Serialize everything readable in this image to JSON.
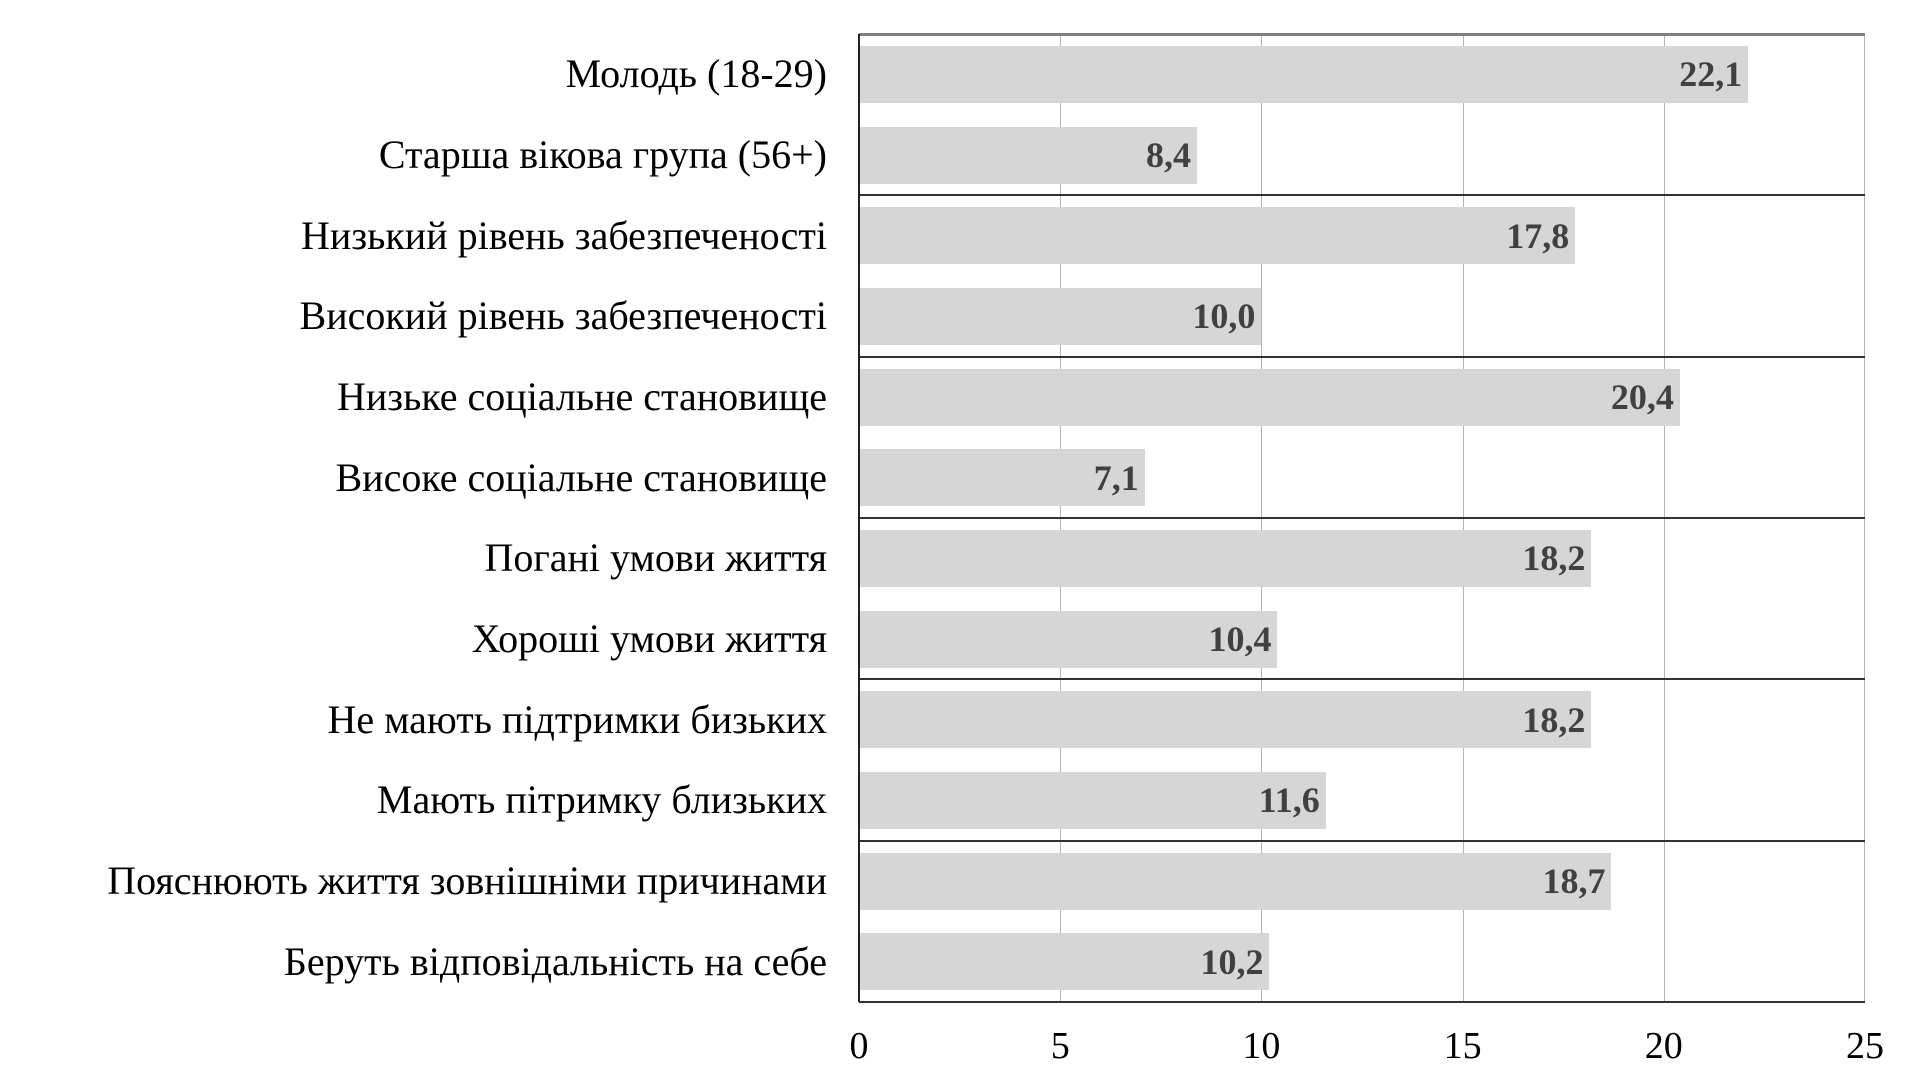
{
  "chart_data": {
    "type": "bar",
    "orientation": "horizontal",
    "title": "",
    "xlabel": "",
    "ylabel": "",
    "xlim": [
      0,
      25
    ],
    "x_ticks": [
      "0",
      "5",
      "10",
      "15",
      "20",
      "25"
    ],
    "grid": true,
    "legend": null,
    "bar_color": "#d6d6d6",
    "value_label_color": "#404040",
    "categories": [
      "Молодь (18-29)",
      "Старша вікова група (56+)",
      "Низький рівень забезпеченості",
      "Високий рівень забезпеченості",
      "Низьке соціальне становище",
      "Високе соціальне становище",
      "Погані умови життя",
      "Хороші умови життя",
      "Не мають підтримки бизьких",
      "Мають пітримку близьких",
      "Пояснюють життя зовнішніми причинами",
      "Беруть відповідальність на себе"
    ],
    "values": [
      22.1,
      8.4,
      17.8,
      10.0,
      20.4,
      7.1,
      18.2,
      10.4,
      18.2,
      11.6,
      18.7,
      10.2
    ],
    "value_labels": [
      "22,1",
      "8,4",
      "17,8",
      "10,0",
      "20,4",
      "7,1",
      "18,2",
      "10,4",
      "18,2",
      "11,6",
      "18,7",
      "10,2"
    ],
    "groups": [
      [
        "Молодь (18-29)",
        "Старша вікова група (56+)"
      ],
      [
        "Низький рівень забезпеченості",
        "Високий рівень забезпеченості"
      ],
      [
        "Низьке соціальне становище",
        "Високе соціальне становище"
      ],
      [
        "Погані умови життя",
        "Хороші умови життя"
      ],
      [
        "Не мають підтримки бизьких",
        "Мають пітримку близьких"
      ],
      [
        "Пояснюють життя зовнішніми причинами",
        "Беруть відповідальність на себе"
      ]
    ]
  }
}
